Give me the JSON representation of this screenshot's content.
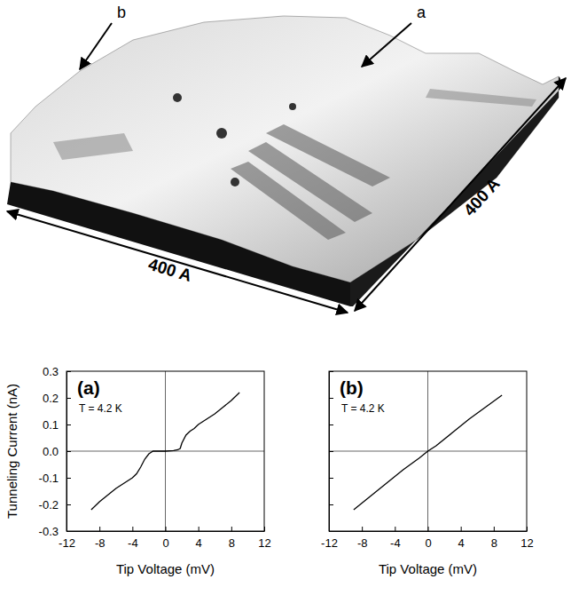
{
  "image": {
    "labels": [
      "b",
      "a"
    ],
    "dimensions": [
      "400 A",
      "400 A"
    ]
  },
  "chart_data": [
    {
      "type": "line",
      "title": "(a)",
      "annotations": [
        "T = 4.2 K"
      ],
      "x_label": "Tip Voltage (mV)",
      "y_label": "Tunneling Current (nA)",
      "x": [
        -9,
        -8,
        -7,
        -6,
        -5,
        -4,
        -3.5,
        -3,
        -2.5,
        -2,
        -1.5,
        -1,
        0,
        1,
        1.5,
        1.8,
        2,
        2.5,
        3,
        3.5,
        4,
        5,
        6,
        7,
        8,
        9
      ],
      "values": [
        -0.22,
        -0.19,
        -0.165,
        -0.14,
        -0.12,
        -0.1,
        -0.085,
        -0.06,
        -0.03,
        -0.01,
        0.0,
        0.0,
        0.0,
        0.002,
        0.005,
        0.01,
        0.03,
        0.06,
        0.075,
        0.085,
        0.1,
        0.12,
        0.14,
        0.165,
        0.19,
        0.22
      ],
      "color": "#000000",
      "xlim": [
        -12,
        12
      ],
      "xticks": [
        -12,
        -8,
        -4,
        0,
        4,
        8,
        12
      ],
      "ylim": [
        -0.3,
        0.3
      ],
      "yticks": [
        -0.3,
        -0.2,
        -0.1,
        {
          "value": 0,
          "label": "0.0"
        },
        0.1,
        0.2,
        0.3
      ]
    },
    {
      "type": "line",
      "title": "(b)",
      "annotations": [
        "T = 4.2 K"
      ],
      "x_label": "Tip Voltage (mV)",
      "x": [
        -9,
        -7,
        -5,
        -3,
        -1,
        0,
        1,
        3,
        5,
        7,
        9
      ],
      "values": [
        -0.22,
        -0.17,
        -0.12,
        -0.07,
        -0.025,
        0.0,
        0.02,
        0.07,
        0.12,
        0.165,
        0.21
      ],
      "color": "#000000",
      "xlim": [
        -12,
        12
      ],
      "xticks": [
        -12,
        -8,
        -4,
        0,
        4,
        8,
        12
      ],
      "ylim": [
        -0.3,
        0.3
      ],
      "yticks": [
        -0.3,
        -0.2,
        -0.1,
        {
          "value": 0,
          "label": "0.0"
        },
        0.1,
        0.2,
        0.3
      ],
      "tick_labels": "x"
    }
  ]
}
